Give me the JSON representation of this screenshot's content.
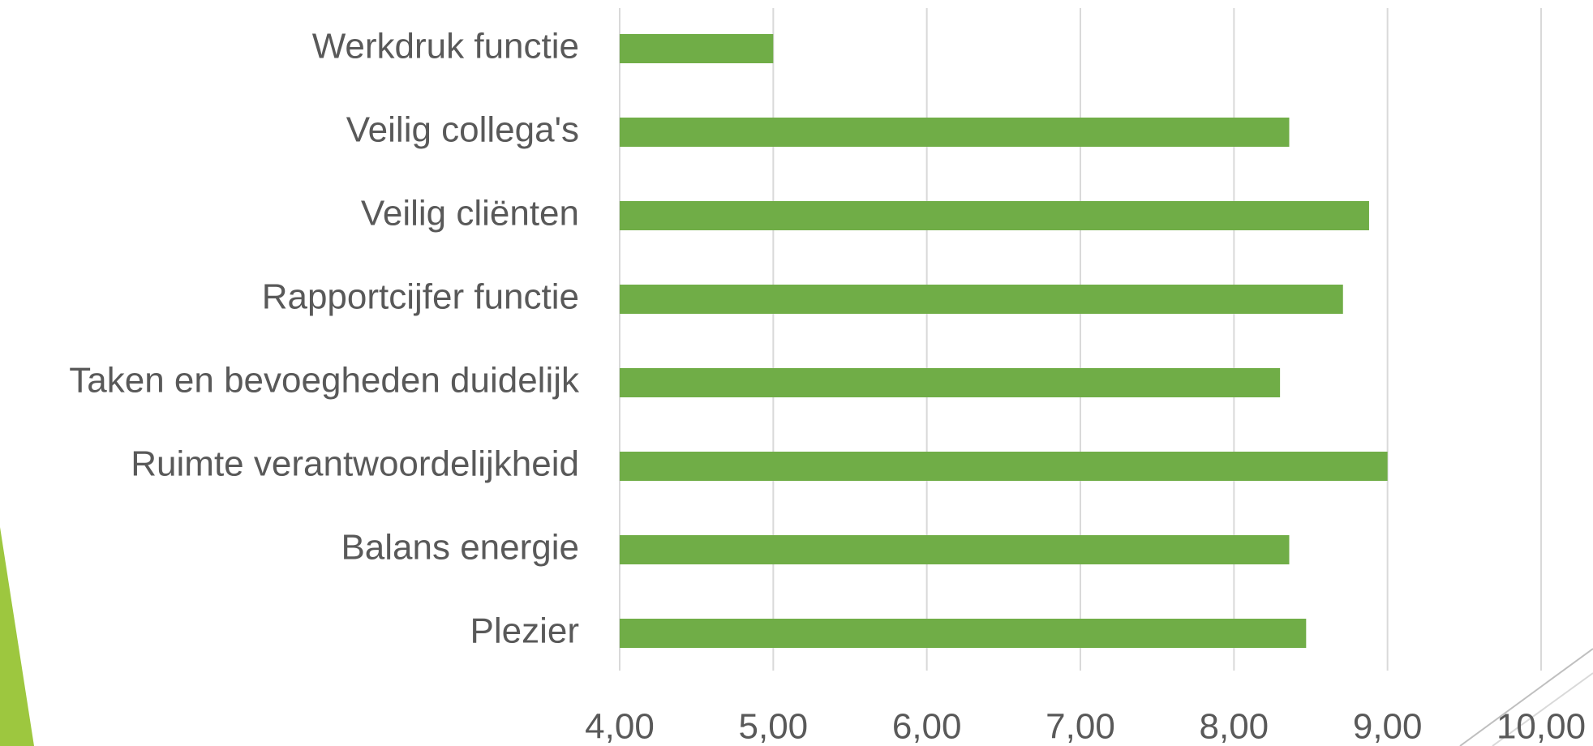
{
  "chart_data": {
    "type": "bar",
    "orientation": "horizontal",
    "categories": [
      "Werkdruk functie",
      "Veilig collega's",
      "Veilig cliënten",
      "Rapportcijfer functie",
      "Taken en bevoegheden duidelijk",
      "Ruimte verantwoordelijkheid",
      "Balans energie",
      "Plezier"
    ],
    "values": [
      5.0,
      8.36,
      8.88,
      8.71,
      8.3,
      9.0,
      8.36,
      8.47
    ],
    "color": "#70ad47",
    "xlim": [
      4,
      10
    ],
    "xticks": [
      {
        "value": 4,
        "label": "4,00"
      },
      {
        "value": 5,
        "label": "5,00"
      },
      {
        "value": 6,
        "label": "6,00"
      },
      {
        "value": 7,
        "label": "7,00"
      },
      {
        "value": 8,
        "label": "8,00"
      },
      {
        "value": 9,
        "label": "9,00"
      },
      {
        "value": 10,
        "label": "10,00"
      }
    ],
    "grid": true
  }
}
